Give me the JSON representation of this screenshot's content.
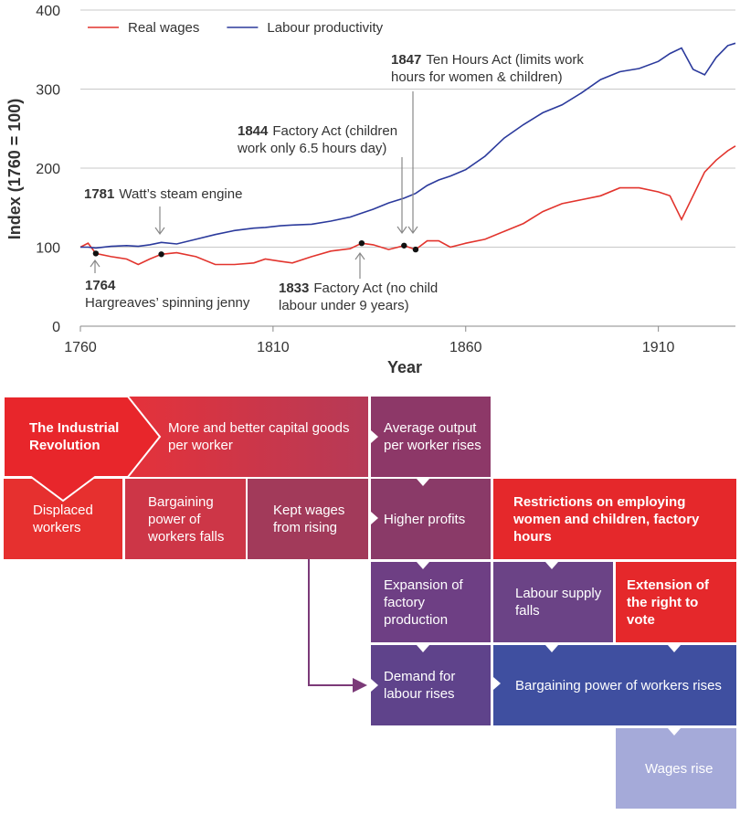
{
  "chart_data": {
    "type": "line",
    "ylabel": "Index (1760 = 100)",
    "xlabel": "Year",
    "xlim": [
      1760,
      1930
    ],
    "xticks": [
      1760,
      1810,
      1860,
      1910
    ],
    "ylim": [
      0,
      400
    ],
    "yticks": [
      0,
      100,
      200,
      300,
      400
    ],
    "grid": true,
    "legend": "upper left",
    "x": [
      1760,
      1762,
      1764,
      1768,
      1772,
      1775,
      1778,
      1781,
      1785,
      1790,
      1795,
      1800,
      1805,
      1808,
      1812,
      1815,
      1820,
      1825,
      1830,
      1833,
      1836,
      1840,
      1844,
      1847,
      1850,
      1853,
      1856,
      1860,
      1865,
      1870,
      1875,
      1880,
      1885,
      1890,
      1895,
      1900,
      1905,
      1910,
      1913,
      1916,
      1919,
      1922,
      1925,
      1928,
      1930
    ],
    "series": [
      {
        "name": "Real wages",
        "color": "#e2342d",
        "values": [
          100,
          105,
          92,
          88,
          85,
          78,
          85,
          91,
          93,
          88,
          78,
          78,
          80,
          85,
          82,
          80,
          88,
          95,
          98,
          105,
          103,
          97,
          102,
          97,
          108,
          108,
          100,
          105,
          110,
          120,
          130,
          145,
          155,
          160,
          165,
          175,
          175,
          170,
          165,
          135,
          165,
          195,
          210,
          222,
          228
        ]
      },
      {
        "name": "Labour productivity",
        "color": "#2b3a9c",
        "values": [
          100,
          100,
          99,
          101,
          102,
          101,
          103,
          106,
          104,
          110,
          116,
          121,
          124,
          125,
          127,
          128,
          129,
          133,
          138,
          143,
          148,
          156,
          162,
          168,
          178,
          185,
          190,
          198,
          215,
          238,
          255,
          270,
          280,
          295,
          312,
          322,
          326,
          335,
          345,
          352,
          325,
          318,
          340,
          355,
          358
        ]
      }
    ],
    "annotations": [
      {
        "x": 1764,
        "y": 92,
        "lines": [
          "Hargreaves’ spinning jenny"
        ]
      },
      {
        "x": 1781,
        "y": 91,
        "lines": [
          "Watt’s steam engine"
        ]
      },
      {
        "x": 1833,
        "y": 105,
        "lines": [
          "Factory Act (no child",
          "labour under 9 years)"
        ]
      },
      {
        "x": 1844,
        "y": 102,
        "lines": [
          "Factory Act (children",
          "work only 6.5 hours day)"
        ]
      },
      {
        "x": 1847,
        "y": 97,
        "lines": [
          "Ten Hours Act (limits work",
          "hours for women & children)"
        ]
      }
    ]
  },
  "diagram": {
    "boxes": [
      {
        "label": "The Industrial Revolution",
        "emphasis": true
      },
      {
        "label": "More and better capital goods per worker",
        "emphasis": false
      },
      {
        "label": "Average output per worker rises",
        "emphasis": false
      },
      {
        "label": "Displaced workers",
        "emphasis": false
      },
      {
        "label": "Bargaining power of workers falls",
        "emphasis": false
      },
      {
        "label": "Kept wages from rising",
        "emphasis": false
      },
      {
        "label": "Higher profits",
        "emphasis": false
      },
      {
        "label": "Restrictions on employing women and children, factory hours",
        "emphasis": true
      },
      {
        "label": "Expansion of factory production",
        "emphasis": false
      },
      {
        "label": "Labour supply falls",
        "emphasis": false
      },
      {
        "label": "Extension of the right to vote",
        "emphasis": true
      },
      {
        "label": "Demand for labour rises",
        "emphasis": false
      },
      {
        "label": "Bargaining power of workers rises",
        "emphasis": false
      },
      {
        "label": "Wages rise",
        "emphasis": false
      }
    ]
  }
}
